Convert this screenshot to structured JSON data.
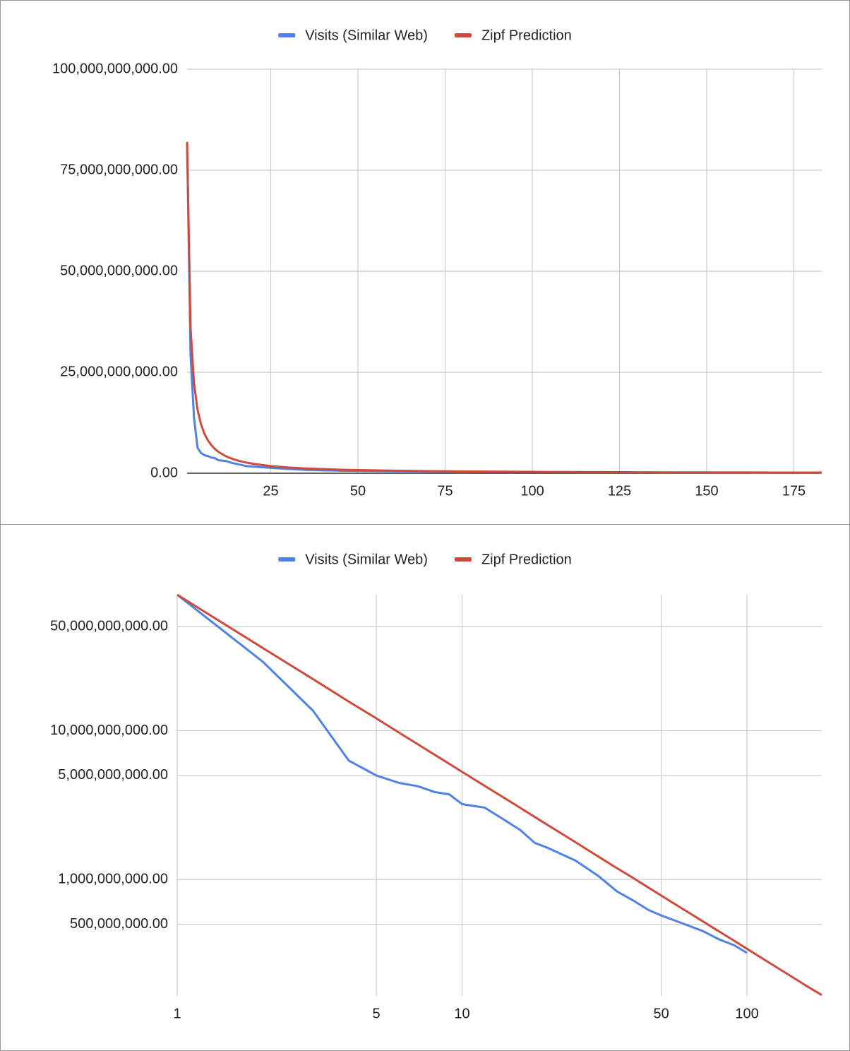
{
  "chart_data": [
    {
      "type": "line",
      "x": [
        1,
        2,
        3,
        4,
        5,
        6,
        7,
        8,
        9,
        10,
        12,
        14,
        16,
        18,
        20,
        25,
        30,
        35,
        40,
        45,
        50,
        60,
        70,
        80,
        90,
        100,
        110,
        120,
        130,
        140,
        150,
        160,
        170,
        183
      ],
      "series": [
        {
          "name": "Visits (Similar Web)",
          "color": "#4f81e6",
          "values": [
            82000000000,
            29000000000,
            13600000000,
            6300000000,
            5000000000,
            4460000000,
            4230000000,
            3870000000,
            3740000000,
            3210000000,
            3040000000,
            2530000000,
            2150000000,
            1760000000,
            1630000000,
            1340000000,
            1060000000,
            830000000,
            720000000,
            625000000,
            573000000,
            503000000,
            450000000,
            395000000,
            362000000,
            321000000,
            null,
            null,
            null,
            null,
            null,
            null,
            null,
            null
          ]
        },
        {
          "name": "Zipf Prediction",
          "color": "#d04a3b",
          "values": [
            82000000000,
            35900000000,
            22200000000,
            15700000000,
            12100000000,
            9720000000,
            8090000000,
            6900000000,
            6000000000,
            5290000000,
            4260000000,
            3550000000,
            3030000000,
            2630000000,
            2320000000,
            1780000000,
            1430000000,
            1190000000,
            1020000000,
            884000000,
            780000000,
            628000000,
            523000000,
            446000000,
            388000000,
            342000000,
            305000000,
            275000000,
            250000000,
            229000000,
            211000000,
            195000000,
            182000000,
            167000000
          ]
        }
      ],
      "xlim": [
        1,
        183
      ],
      "xticks": [
        25,
        50,
        75,
        100,
        125,
        150,
        175
      ],
      "ylim": [
        0,
        100000000000
      ],
      "yticks": [
        {
          "value": 0,
          "label": "0.00"
        },
        {
          "value": 25000000000,
          "label": "25,000,000,000.00"
        },
        {
          "value": 50000000000,
          "label": "50,000,000,000.00"
        },
        {
          "value": 75000000000,
          "label": "75,000,000,000.00"
        },
        {
          "value": 100000000000,
          "label": "100,000,000,000.00"
        }
      ],
      "grid": true,
      "legend": "top",
      "log_x": false,
      "log_y": false
    },
    {
      "type": "line",
      "x": [
        1,
        2,
        3,
        4,
        5,
        6,
        7,
        8,
        9,
        10,
        12,
        14,
        16,
        18,
        20,
        25,
        30,
        35,
        40,
        45,
        50,
        60,
        70,
        80,
        90,
        100,
        110,
        120,
        130,
        140,
        150,
        160,
        170,
        183
      ],
      "series": [
        {
          "name": "Visits (Similar Web)",
          "color": "#4f81e6",
          "values": [
            82000000000,
            29000000000,
            13600000000,
            6300000000,
            5000000000,
            4460000000,
            4230000000,
            3870000000,
            3740000000,
            3210000000,
            3040000000,
            2530000000,
            2150000000,
            1760000000,
            1630000000,
            1340000000,
            1060000000,
            830000000,
            720000000,
            625000000,
            573000000,
            503000000,
            450000000,
            395000000,
            362000000,
            321000000,
            null,
            null,
            null,
            null,
            null,
            null,
            null,
            null
          ]
        },
        {
          "name": "Zipf Prediction",
          "color": "#d04a3b",
          "values": [
            82000000000,
            35900000000,
            22200000000,
            15700000000,
            12100000000,
            9720000000,
            8090000000,
            6900000000,
            6000000000,
            5290000000,
            4260000000,
            3550000000,
            3030000000,
            2630000000,
            2320000000,
            1780000000,
            1430000000,
            1190000000,
            1020000000,
            884000000,
            780000000,
            628000000,
            523000000,
            446000000,
            388000000,
            342000000,
            305000000,
            275000000,
            250000000,
            229000000,
            211000000,
            195000000,
            182000000,
            167000000
          ]
        }
      ],
      "xlim": [
        1,
        183
      ],
      "xticks": [
        1,
        5,
        10,
        50,
        100
      ],
      "ylim": [
        165000000,
        82000000000
      ],
      "yticks": [
        {
          "value": 500000000,
          "label": "500,000,000.00"
        },
        {
          "value": 1000000000,
          "label": "1,000,000,000.00"
        },
        {
          "value": 5000000000,
          "label": "5,000,000,000.00"
        },
        {
          "value": 10000000000,
          "label": "10,000,000,000.00"
        },
        {
          "value": 50000000000,
          "label": "50,000,000,000.00"
        }
      ],
      "grid": true,
      "legend": "top",
      "log_x": true,
      "log_y": true
    }
  ]
}
